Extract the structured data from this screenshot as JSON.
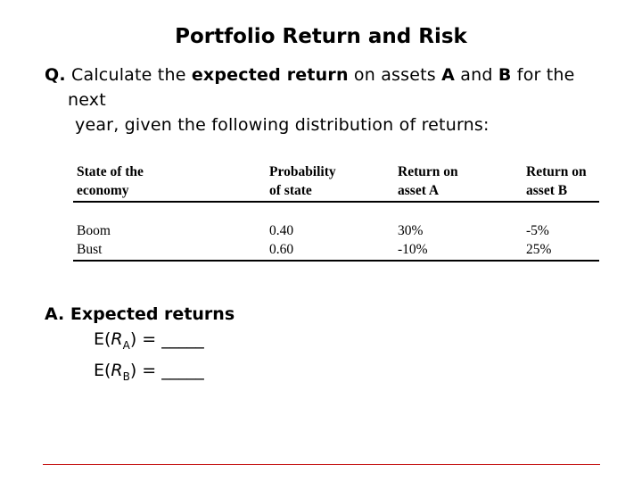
{
  "title": "Portfolio Return and Risk",
  "question": {
    "prefix": "Q.",
    "text_1": " Calculate the ",
    "bold_1": "expected return",
    "text_2": " on assets ",
    "bold_a": "A",
    "text_3": " and ",
    "bold_b": "B",
    "text_4": " for the",
    "line_2": "next",
    "line_3": "year, given the following distribution of returns:"
  },
  "table": {
    "headers": [
      [
        "State of the",
        "economy"
      ],
      [
        "Probability",
        "of state"
      ],
      [
        "Return on",
        "asset A"
      ],
      [
        "Return on",
        "asset B"
      ]
    ],
    "rows": [
      [
        "Boom",
        "0.40",
        "30%",
        "-5%"
      ],
      [
        "Bust",
        "0.60",
        "-10%",
        "25%"
      ]
    ]
  },
  "answer": {
    "heading": "A. Expected returns",
    "eq_a": {
      "prefix": "E(",
      "var": "R",
      "sub": "A",
      "suffix": ") = _____"
    },
    "eq_b": {
      "prefix": "E(",
      "var": "R",
      "sub": "B",
      "suffix": ") = _____"
    }
  },
  "colors": {
    "footer_rule": "#c00000"
  }
}
